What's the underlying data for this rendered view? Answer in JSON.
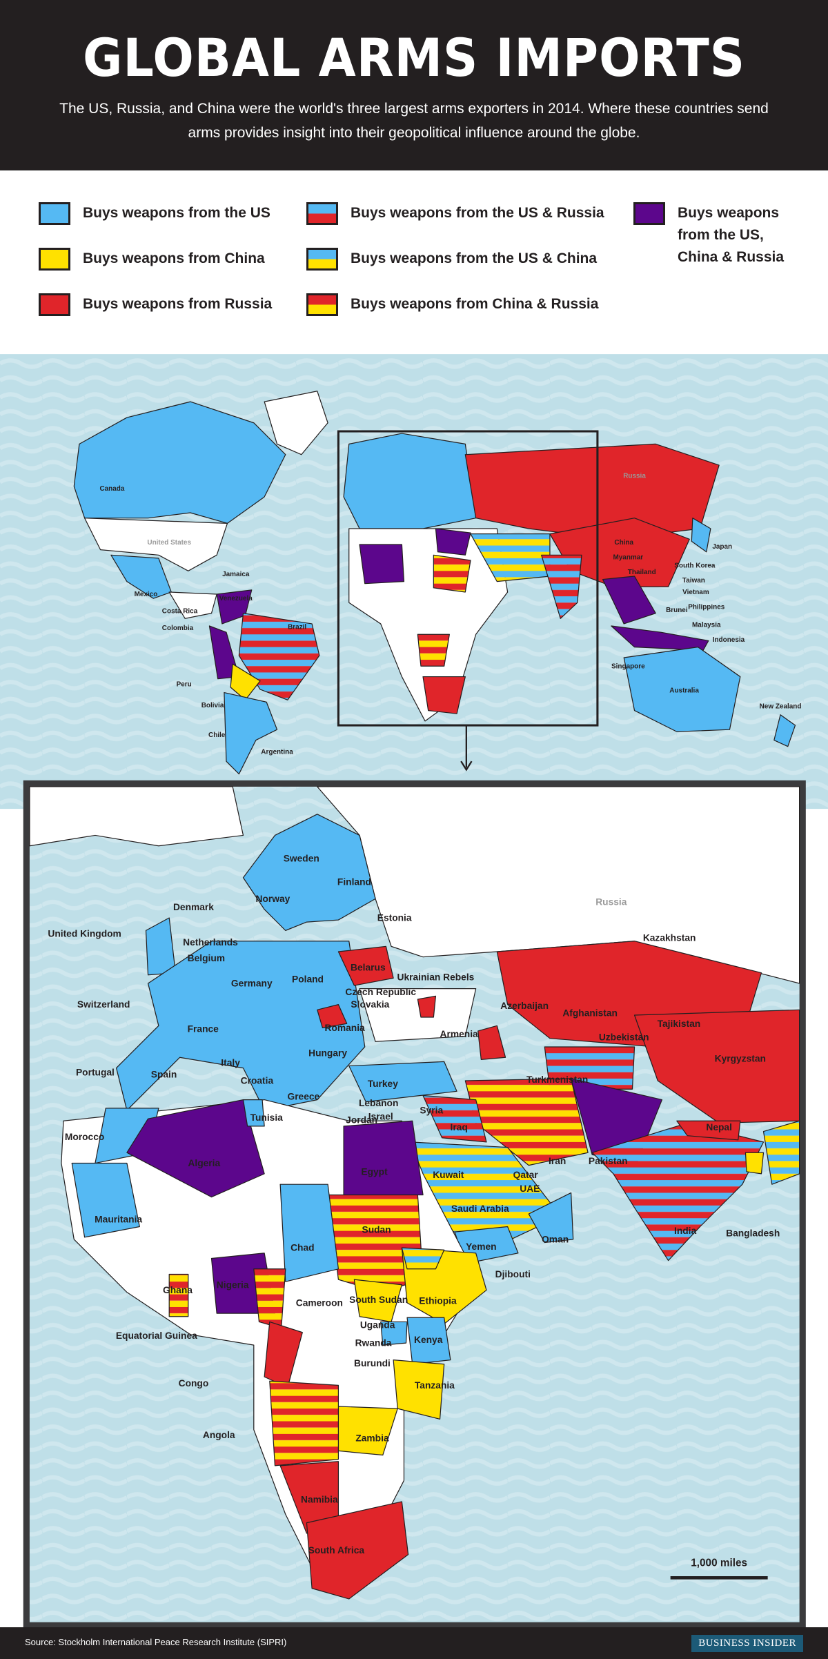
{
  "header": {
    "title": "GLOBAL ARMS IMPORTS",
    "subtitle": "The US, Russia, and China were the world's three largest arms exporters in 2014. Where these countries send arms provides insight into their geopolitical influence around the globe."
  },
  "colors": {
    "us": "#55b9f3",
    "china": "#ffe100",
    "russia": "#e0252a",
    "all_three": "#5c068c",
    "ocean": "#bfdfe8",
    "frame": "#3b3b3d"
  },
  "legend": [
    {
      "label": "Buys weapons from the US",
      "colors": [
        "#55b9f3"
      ]
    },
    {
      "label": "Buys weapons from China",
      "colors": [
        "#ffe100"
      ]
    },
    {
      "label": "Buys weapons from Russia",
      "colors": [
        "#e0252a"
      ]
    },
    {
      "label": "Buys weapons from the US & Russia",
      "colors": [
        "#55b9f3",
        "#e0252a"
      ]
    },
    {
      "label": "Buys weapons from the US & China",
      "colors": [
        "#55b9f3",
        "#ffe100"
      ]
    },
    {
      "label": "Buys weapons from China & Russia",
      "colors": [
        "#e0252a",
        "#ffe100"
      ]
    },
    {
      "label": "Buys weapons from the US, China & Russia",
      "colors": [
        "#5c068c"
      ]
    }
  ],
  "world_map": {
    "labels": [
      "Canada",
      "United States",
      "Mexico",
      "Jamaica",
      "Costa Rica",
      "Venezuela",
      "Colombia",
      "Brazil",
      "Peru",
      "Bolivia",
      "Chile",
      "Argentina",
      "Russia",
      "China",
      "Myanmar",
      "Japan",
      "South Korea",
      "Thailand",
      "Taiwan",
      "Vietnam",
      "Philippines",
      "Brunei",
      "Malaysia",
      "Indonesia",
      "Singapore",
      "Australia",
      "New Zealand"
    ]
  },
  "inset_map": {
    "labels": [
      "Sweden",
      "Finland",
      "Norway",
      "Estonia",
      "Russia",
      "Denmark",
      "United Kingdom",
      "Kazakhstan",
      "Netherlands",
      "Belgium",
      "Germany",
      "Poland",
      "Belarus",
      "Ukrainian Rebels",
      "Czech Republic",
      "Slovakia",
      "Switzerland",
      "Azerbaijan",
      "Afghanistan",
      "Tajikistan",
      "France",
      "Romania",
      "Uzbekistan",
      "Hungary",
      "Armenia",
      "Kyrgyzstan",
      "Portugal",
      "Spain",
      "Italy",
      "Croatia",
      "Turkmenistan",
      "Turkey",
      "Greece",
      "Tunisia",
      "Lebanon",
      "Syria",
      "Jordan",
      "Israel",
      "Iraq",
      "Nepal",
      "Morocco",
      "Iran",
      "Pakistan",
      "Algeria",
      "Egypt",
      "Kuwait",
      "Qatar",
      "UAE",
      "Saudi Arabia",
      "India",
      "Mauritania",
      "Sudan",
      "Chad",
      "Oman",
      "Yemen",
      "Bangladesh",
      "Djibouti",
      "Ghana",
      "Nigeria",
      "South Sudan",
      "Ethiopia",
      "Cameroon",
      "Uganda",
      "Kenya",
      "Equatorial Guinea",
      "Rwanda",
      "Burundi",
      "Congo",
      "Tanzania",
      "Angola",
      "Zambia",
      "Namibia",
      "South Africa"
    ],
    "scale_label": "1,000 miles"
  },
  "footer": {
    "source": "Source: Stockholm International Peace Research Institute (SIPRI)",
    "brand": "BUSINESS INSIDER"
  }
}
